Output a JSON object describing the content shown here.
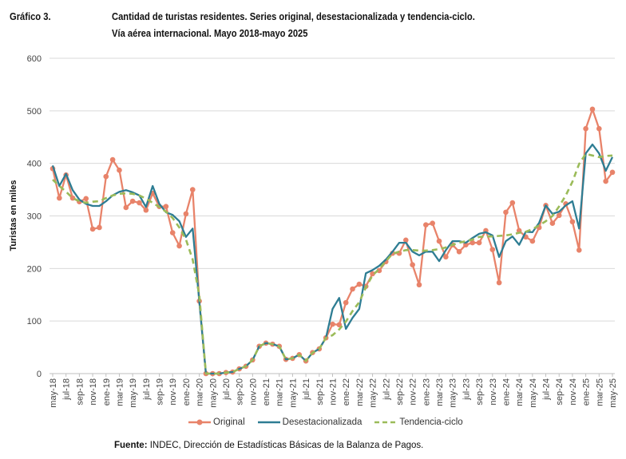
{
  "header": {
    "label": "Gráfico 3.",
    "title_line1": "Cantidad de turistas residentes. Series original, desestacionalizada y tendencia-ciclo.",
    "title_line2": "Vía aérea internacional. Mayo 2018-mayo 2025"
  },
  "source": {
    "prefix": "Fuente:",
    "text": " INDEC, Dirección de Estadísticas Básicas de la Balanza de Pagos."
  },
  "colors": {
    "original": "#E8836A",
    "desestacionalizada": "#2E7D93",
    "tendencia": "#9BBB59",
    "grid": "#D9D9D9"
  },
  "chart_data": {
    "type": "line",
    "title": "Cantidad de turistas residentes. Series original, desestacionalizada y tendencia-ciclo. Vía aérea internacional. Mayo 2018-mayo 2025",
    "xlabel": "",
    "ylabel": "Turistas en miles",
    "ylim": [
      0,
      600
    ],
    "yticks": [
      0,
      100,
      200,
      300,
      400,
      500,
      600
    ],
    "grid": true,
    "legend_position": "bottom",
    "x_tick_labels": [
      "may-18",
      "jul-18",
      "sep-18",
      "nov-18",
      "ene-19",
      "mar-19",
      "may-19",
      "jul-19",
      "sep-19",
      "nov-19",
      "ene-20",
      "mar-20",
      "may-20",
      "jul-20",
      "sep-20",
      "nov-20",
      "ene-21",
      "mar-21",
      "may-21",
      "jul-21",
      "sep-21",
      "nov-21",
      "ene-22",
      "mar-22",
      "may-22",
      "jul-22",
      "sep-22",
      "nov-22",
      "ene-23",
      "mar-23",
      "may-23",
      "jul-23",
      "sep-23",
      "nov-23",
      "ene-24",
      "mar-24",
      "may-24",
      "jul-24",
      "sep-24",
      "nov-24",
      "ene-25",
      "mar-25",
      "may-25"
    ],
    "series": [
      {
        "name": "Original",
        "values": [
          390,
          334,
          378,
          334,
          327,
          333,
          275,
          278,
          375,
          407,
          387,
          316,
          328,
          325,
          311,
          343,
          318,
          318,
          268,
          243,
          304,
          350,
          138,
          0,
          0,
          0,
          2,
          3,
          9,
          14,
          26,
          52,
          58,
          56,
          52,
          27,
          29,
          36,
          24,
          40,
          47,
          68,
          94,
          93,
          135,
          161,
          170,
          166,
          190,
          196,
          213,
          229,
          229,
          254,
          207,
          169,
          283,
          286,
          252,
          222,
          245,
          232,
          245,
          249,
          249,
          272,
          236,
          173,
          307,
          325,
          272,
          260,
          252,
          278,
          320,
          286,
          301,
          323,
          289,
          235,
          466,
          503,
          466,
          366,
          383
        ]
      },
      {
        "name": "Desestacionalizada",
        "values": [
          396,
          357,
          380,
          349,
          331,
          323,
          319,
          319,
          328,
          339,
          346,
          349,
          345,
          339,
          317,
          357,
          323,
          307,
          302,
          290,
          260,
          276,
          137,
          0,
          0,
          0,
          2,
          3,
          9,
          14,
          26,
          52,
          58,
          56,
          52,
          27,
          29,
          36,
          24,
          40,
          47,
          68,
          123,
          144,
          85,
          106,
          123,
          191,
          197,
          205,
          217,
          232,
          249,
          249,
          232,
          225,
          232,
          232,
          214,
          235,
          252,
          252,
          249,
          258,
          266,
          269,
          263,
          222,
          252,
          261,
          245,
          270,
          269,
          287,
          320,
          304,
          308,
          320,
          328,
          276,
          419,
          436,
          419,
          386,
          412
        ]
      },
      {
        "name": "Tendencia-ciclo",
        "values": [
          369,
          357,
          346,
          334,
          328,
          325,
          327,
          328,
          334,
          339,
          342,
          343,
          342,
          339,
          333,
          325,
          317,
          308,
          296,
          278,
          255,
          217,
          149,
          0,
          0,
          0,
          2,
          3,
          9,
          14,
          26,
          52,
          58,
          56,
          52,
          27,
          29,
          36,
          24,
          40,
          47,
          68,
          73,
          84,
          99,
          119,
          136,
          164,
          187,
          199,
          214,
          228,
          232,
          235,
          235,
          234,
          234,
          235,
          237,
          240,
          245,
          249,
          252,
          255,
          260,
          261,
          261,
          262,
          263,
          265,
          268,
          270,
          275,
          282,
          290,
          300,
          318,
          339,
          365,
          399,
          418,
          415,
          412,
          414,
          415
        ]
      }
    ]
  }
}
